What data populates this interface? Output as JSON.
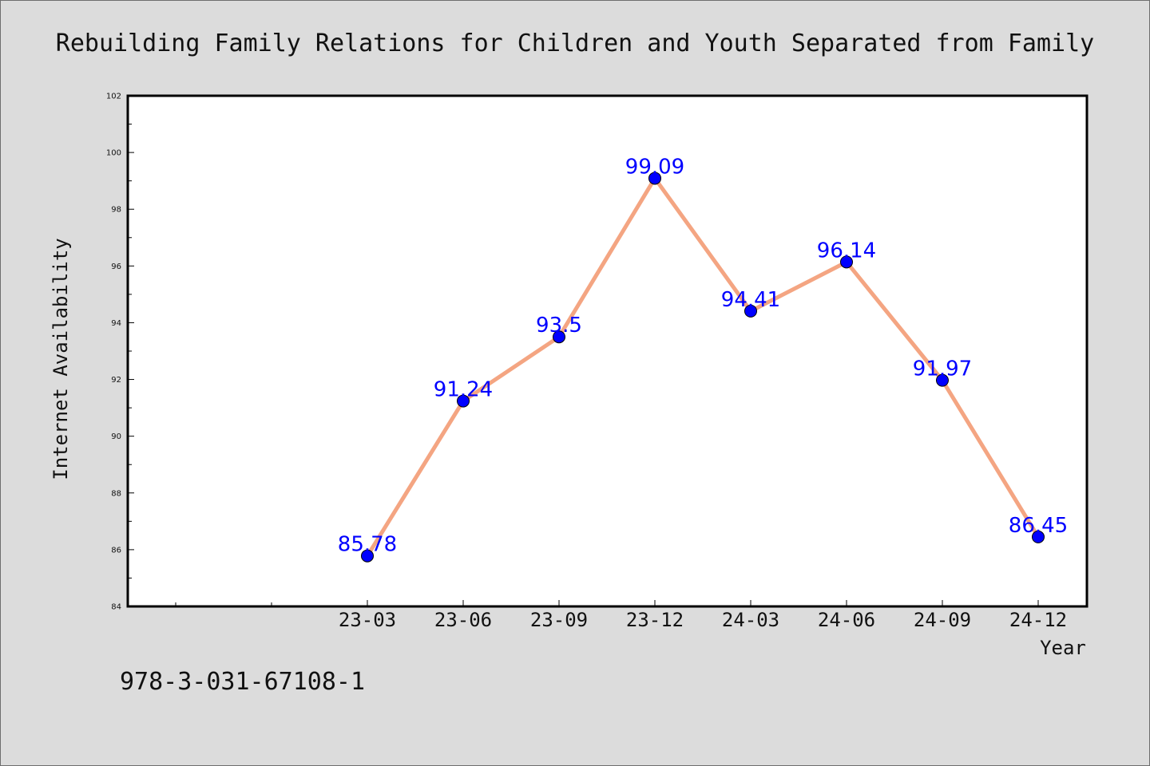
{
  "footnote": "978-3-031-67108-1",
  "colors": {
    "background": "#dcdcdc",
    "plot_background": "#ffffff",
    "line": "#f4a582",
    "marker": "#0000ff",
    "label": "#0000ff"
  },
  "chart_data": {
    "type": "line",
    "title": "Rebuilding Family Relations for Children and Youth Separated from Family",
    "xlabel": "Year",
    "ylabel": "Internet Availability",
    "categories": [
      "23-03",
      "23-06",
      "23-09",
      "23-12",
      "24-03",
      "24-06",
      "24-09",
      "24-12"
    ],
    "series": [
      {
        "values": [
          85.78,
          91.24,
          93.5,
          99.09,
          94.41,
          96.14,
          91.97,
          86.45
        ],
        "data_labels": [
          "85.78",
          "91.24",
          "93.5",
          "99.09",
          "94.41",
          "96.14",
          "91.97",
          "86.45"
        ]
      }
    ],
    "ylim": [
      84,
      102
    ],
    "yticks": [
      "84",
      "86",
      "88",
      "90",
      "92",
      "94",
      "96",
      "98",
      "100",
      "102"
    ],
    "grid": false,
    "legend": "none"
  }
}
